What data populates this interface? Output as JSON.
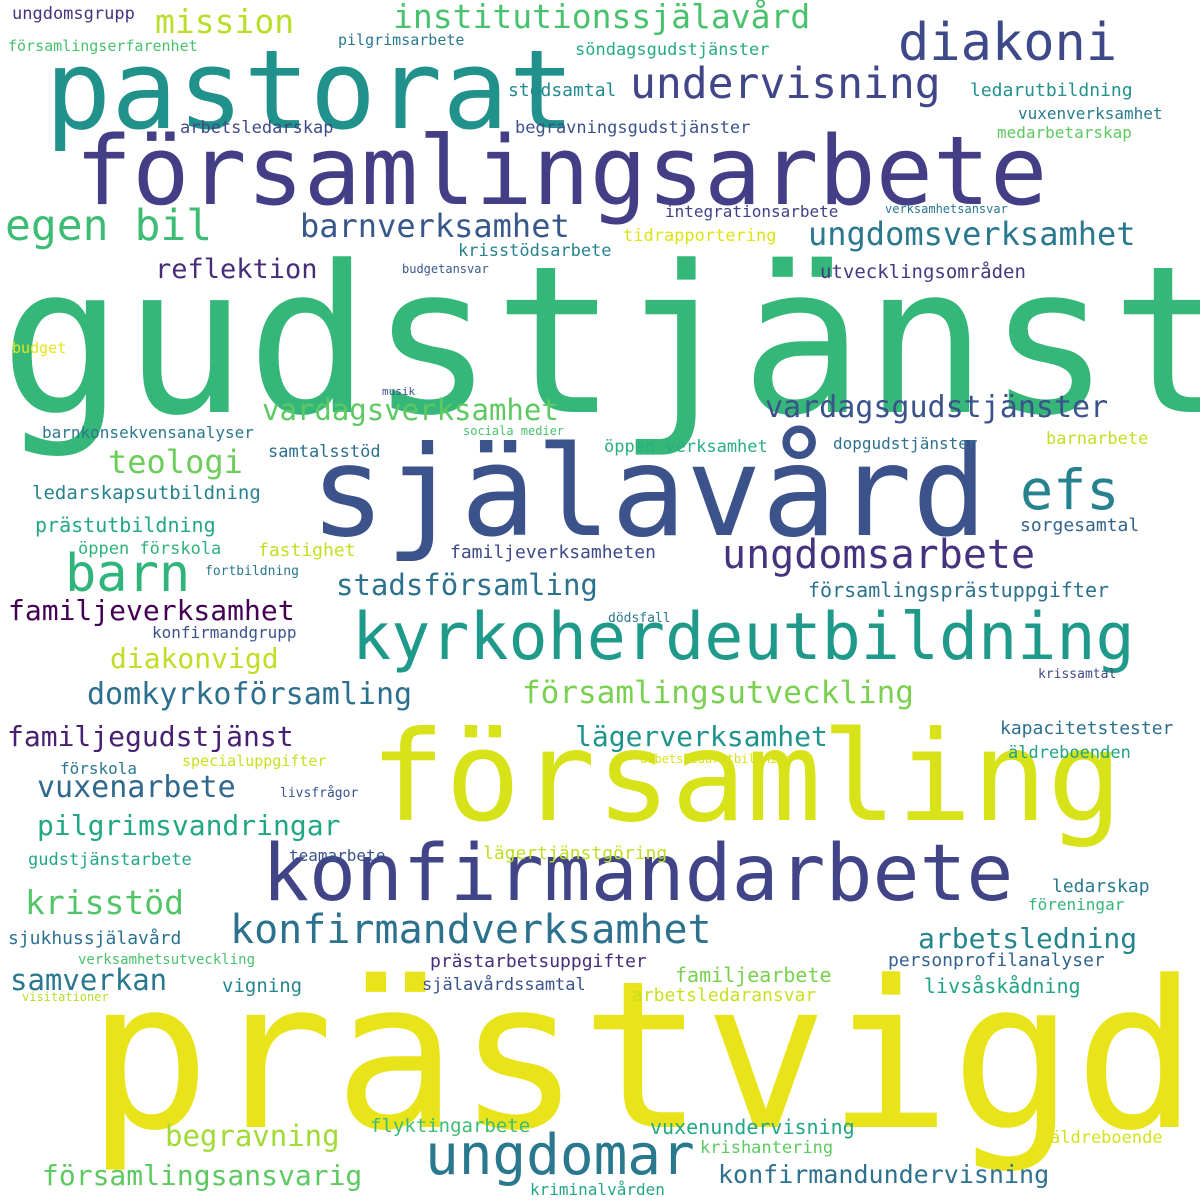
{
  "words": [
    {
      "text": "gudstjänst",
      "color": "#35b779"
    },
    {
      "text": "prästvigd",
      "color": "#e8e419"
    },
    {
      "text": "församling",
      "color": "#d8e219"
    },
    {
      "text": "själavård",
      "color": "#3b528b"
    },
    {
      "text": "församlingsarbete",
      "color": "#433e85"
    },
    {
      "text": "pastorat",
      "color": "#21918c"
    },
    {
      "text": "konfirmandarbete",
      "color": "#414487"
    },
    {
      "text": "kyrkoherdeutbildning",
      "color": "#1f9a8a"
    },
    {
      "text": "diakoni",
      "color": "#3e4989"
    },
    {
      "text": "ungdomar",
      "color": "#2a788e"
    },
    {
      "text": "efs",
      "color": "#26828e"
    },
    {
      "text": "barn",
      "color": "#2fb47c"
    },
    {
      "text": "konfirmandverksamhet",
      "color": "#2c728e"
    },
    {
      "text": "ungdomsarbete",
      "color": "#46327e"
    },
    {
      "text": "undervisning",
      "color": "#404688"
    },
    {
      "text": "egen bil",
      "color": "#3dbc74"
    },
    {
      "text": "ungdomsverksamhet",
      "color": "#2a788e"
    },
    {
      "text": "institutionssjälavård",
      "color": "#4ac16d"
    },
    {
      "text": "mission",
      "color": "#b8de29"
    },
    {
      "text": "barnverksamhet",
      "color": "#38588c"
    },
    {
      "text": "reflektion",
      "color": "#472c7a"
    },
    {
      "text": "vardagsverksamhet",
      "color": "#5ec962"
    },
    {
      "text": "vardagsgudstjänster",
      "color": "#3b528b"
    },
    {
      "text": "teologi",
      "color": "#6ccd5a"
    },
    {
      "text": "stadsförsamling",
      "color": "#2c728e"
    },
    {
      "text": "familjeverksamhet",
      "color": "#440154"
    },
    {
      "text": "diakonvigd",
      "color": "#bddf26"
    },
    {
      "text": "domkyrkoförsamling",
      "color": "#2d708e"
    },
    {
      "text": "församlingsutveckling",
      "color": "#7ad151"
    },
    {
      "text": "familjegudstjänst",
      "color": "#482071"
    },
    {
      "text": "lägerverksamhet",
      "color": "#1f948c"
    },
    {
      "text": "vuxenarbete",
      "color": "#30688e"
    },
    {
      "text": "pilgrimsvandringar",
      "color": "#22a785"
    },
    {
      "text": "krisstöd",
      "color": "#52c569"
    },
    {
      "text": "arbetsledning",
      "color": "#25858e"
    },
    {
      "text": "samverkan",
      "color": "#2a788e"
    },
    {
      "text": "begravning",
      "color": "#a2da37"
    },
    {
      "text": "församlingsansvarig",
      "color": "#5ec962"
    },
    {
      "text": "konfirmandundervisning",
      "color": "#2d718e"
    },
    {
      "text": "ungdomsgrupp",
      "color": "#46337e"
    },
    {
      "text": "församlingserfarenhet",
      "color": "#4ac16d"
    },
    {
      "text": "pilgrimsarbete",
      "color": "#2a788e"
    },
    {
      "text": "söndagsgudstjänster",
      "color": "#25ac82"
    },
    {
      "text": "stödsamtal",
      "color": "#23898e"
    },
    {
      "text": "ledarutbildning",
      "color": "#21918c"
    },
    {
      "text": "vuxenverksamhet",
      "color": "#287c8e"
    },
    {
      "text": "arbetsledarskap",
      "color": "#3e4989"
    },
    {
      "text": "begravningsgudstjänster",
      "color": "#3b528b"
    },
    {
      "text": "medarbetarskap",
      "color": "#5ec962"
    },
    {
      "text": "integrationsarbete",
      "color": "#424086"
    },
    {
      "text": "verksamhetsansvar",
      "color": "#2a788e"
    },
    {
      "text": "tidrapportering",
      "color": "#dde318"
    },
    {
      "text": "krisstödsarbete",
      "color": "#26828e"
    },
    {
      "text": "budgetansvar",
      "color": "#38588c"
    },
    {
      "text": "utvecklingsområden",
      "color": "#453781"
    },
    {
      "text": "budget",
      "color": "#e5e419"
    },
    {
      "text": "musik",
      "color": "#3b528b"
    },
    {
      "text": "barnkonsekvensanalyser",
      "color": "#2a788e"
    },
    {
      "text": "sociala medier",
      "color": "#4ac16d"
    },
    {
      "text": "öppen verksamhet",
      "color": "#29af7f"
    },
    {
      "text": "dopgudstjänster",
      "color": "#2d708e"
    },
    {
      "text": "barnarbete",
      "color": "#c2df23"
    },
    {
      "text": "samtalsstöd",
      "color": "#2d708e"
    },
    {
      "text": "ledarskapsutbildning",
      "color": "#26828e"
    },
    {
      "text": "prästutbildning",
      "color": "#22a785"
    },
    {
      "text": "sorgesamtal",
      "color": "#33638d"
    },
    {
      "text": "öppen förskola",
      "color": "#2db27d"
    },
    {
      "text": "fastighet",
      "color": "#c2df23"
    },
    {
      "text": "familjeverksamheten",
      "color": "#3e4989"
    },
    {
      "text": "fortbildning",
      "color": "#2a788e"
    },
    {
      "text": "församlingsprästuppgifter",
      "color": "#2d708e"
    },
    {
      "text": "dödsfall",
      "color": "#2a788e"
    },
    {
      "text": "konfirmandgrupp",
      "color": "#3b528b"
    },
    {
      "text": "krissamtal",
      "color": "#3e4989"
    },
    {
      "text": "kapacitetstester",
      "color": "#2d708e"
    },
    {
      "text": "äldreboenden",
      "color": "#20a386"
    },
    {
      "text": "förskola",
      "color": "#2a788e"
    },
    {
      "text": "specialuppgifter",
      "color": "#c8e020"
    },
    {
      "text": "arbetsledarutbildning",
      "color": "#d5e21a"
    },
    {
      "text": "livsfrågor",
      "color": "#3b528b"
    },
    {
      "text": "gudstjänstarbete",
      "color": "#22a785"
    },
    {
      "text": "teamarbete",
      "color": "#3b528b"
    },
    {
      "text": "lägertjänstgöring",
      "color": "#bddf26"
    },
    {
      "text": "ledarskap",
      "color": "#2a788e"
    },
    {
      "text": "föreningar",
      "color": "#35b779"
    },
    {
      "text": "sjukhussjälavård",
      "color": "#2c728e"
    },
    {
      "text": "verksamhetsutveckling",
      "color": "#4ac16d"
    },
    {
      "text": "prästarbetsuppgifter",
      "color": "#472d7b"
    },
    {
      "text": "personprofilanalyser",
      "color": "#33638d"
    },
    {
      "text": "vigning",
      "color": "#25858e"
    },
    {
      "text": "familjearbete",
      "color": "#7ad151"
    },
    {
      "text": "visitationer",
      "color": "#b5de2b"
    },
    {
      "text": "själavårdssamtal",
      "color": "#3b528b"
    },
    {
      "text": "arbetsledaransvar",
      "color": "#c8e020"
    },
    {
      "text": "livsåskådning",
      "color": "#20a386"
    },
    {
      "text": "flyktingarbete",
      "color": "#3dbc74"
    },
    {
      "text": "vuxenundervisning",
      "color": "#22a785"
    },
    {
      "text": "krishantering",
      "color": "#5ec962"
    },
    {
      "text": "äldreboende",
      "color": "#d2e21b"
    },
    {
      "text": "kriminalvården",
      "color": "#22a785"
    }
  ]
}
